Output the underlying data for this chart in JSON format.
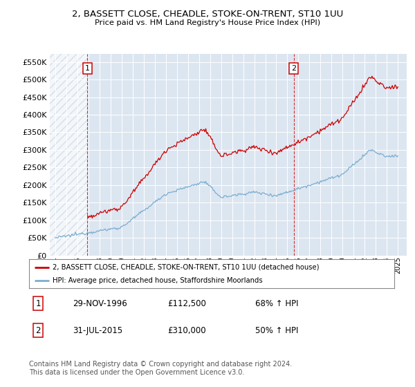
{
  "title_line1": "2, BASSETT CLOSE, CHEADLE, STOKE-ON-TRENT, ST10 1UU",
  "title_line2": "Price paid vs. HM Land Registry's House Price Index (HPI)",
  "ylim": [
    0,
    572000
  ],
  "yticks": [
    0,
    50000,
    100000,
    150000,
    200000,
    250000,
    300000,
    350000,
    400000,
    450000,
    500000,
    550000
  ],
  "xlim_start": 1993.5,
  "xlim_end": 2025.8,
  "sale1_date": 1996.91,
  "sale1_price": 112500,
  "sale2_date": 2015.58,
  "sale2_price": 310000,
  "sale1_label": "1",
  "sale2_label": "2",
  "red_color": "#cc0000",
  "blue_color": "#7aadcf",
  "background_color": "#dce6f1",
  "plot_bg_color": "#dce6f1",
  "hatch_color": "#c8d4e3",
  "legend_line1": "2, BASSETT CLOSE, CHEADLE, STOKE-ON-TRENT, ST10 1UU (detached house)",
  "legend_line2": "HPI: Average price, detached house, Staffordshire Moorlands",
  "table_row1": [
    "1",
    "29-NOV-1996",
    "£112,500",
    "68% ↑ HPI"
  ],
  "table_row2": [
    "2",
    "31-JUL-2015",
    "£310,000",
    "50% ↑ HPI"
  ],
  "footnote": "Contains HM Land Registry data © Crown copyright and database right 2024.\nThis data is licensed under the Open Government Licence v3.0.",
  "hpi_start_year": 1994,
  "hpi_end_year": 2025
}
